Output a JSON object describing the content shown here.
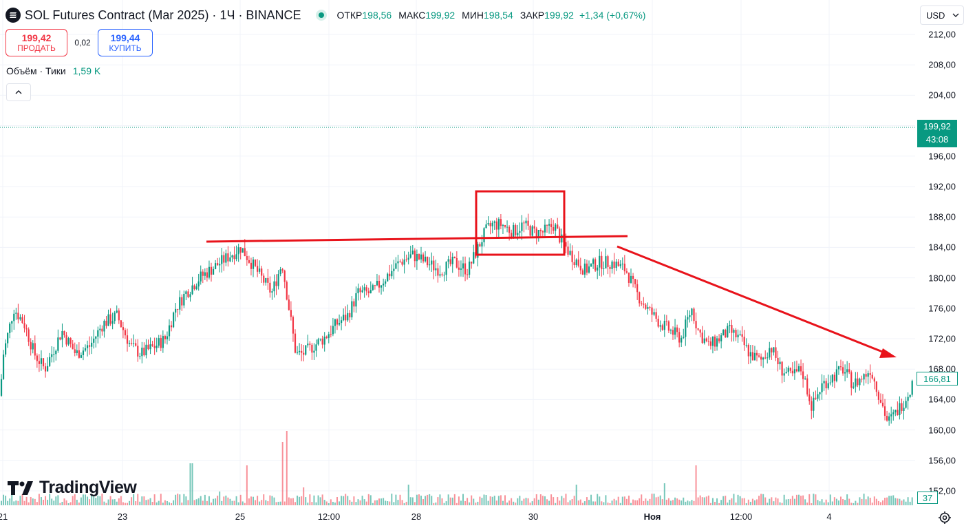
{
  "header": {
    "title": "SOL Futures Contract (Mar 2025) · 1Ч · BINANCE",
    "ohlc": [
      {
        "label": "ОТКР",
        "value": "198,56"
      },
      {
        "label": "МАКС",
        "value": "199,92"
      },
      {
        "label": "МИН",
        "value": "198,54"
      },
      {
        "label": "ЗАКР",
        "value": "199,92"
      }
    ],
    "change": "+1,34 (+0,67%)",
    "currency": "USD"
  },
  "trade": {
    "sell_price": "199,42",
    "sell_label": "ПРОДАТЬ",
    "spread": "0,02",
    "buy_price": "199,44",
    "buy_label": "КУПИТЬ"
  },
  "volume_indicator": {
    "label": "Объём · Тики",
    "value": "1,59 K"
  },
  "logo": {
    "text": "TradingView"
  },
  "price_axis": {
    "ticks": [
      "212,00",
      "208,00",
      "204,00",
      "196,00",
      "192,00",
      "188,00",
      "184,00",
      "180,00",
      "176,00",
      "172,00",
      "168,00",
      "164,00",
      "160,00",
      "156,00",
      "152,00"
    ],
    "current_price": "199,92",
    "countdown": "43:08",
    "last_price": "166,81",
    "volume_value": "37"
  },
  "time_axis": {
    "ticks": [
      "21",
      "23",
      "25",
      "12:00",
      "28",
      "30",
      "Ноя",
      "12:00",
      "4"
    ]
  },
  "colors": {
    "up": "#089981",
    "down": "#f23645",
    "annotation": "#e8131b",
    "grid": "#f0f3fa"
  },
  "icons": {
    "symbol": "solana-icon",
    "collapse": "chevron-up-icon",
    "currency": "chevron-down-icon",
    "settings": "gear-icon"
  },
  "chart_data": {
    "type": "candlestick",
    "timeframe": "1Ч",
    "ylim": [
      150,
      214
    ],
    "price_path": [
      [
        0,
        164.5
      ],
      [
        5,
        170
      ],
      [
        20,
        176
      ],
      [
        35,
        174
      ],
      [
        50,
        170
      ],
      [
        65,
        168
      ],
      [
        90,
        173
      ],
      [
        110,
        170
      ],
      [
        130,
        171
      ],
      [
        150,
        174
      ],
      [
        170,
        175
      ],
      [
        190,
        171
      ],
      [
        205,
        170
      ],
      [
        225,
        171
      ],
      [
        240,
        172
      ],
      [
        255,
        176
      ],
      [
        270,
        178
      ],
      [
        290,
        180
      ],
      [
        305,
        181
      ],
      [
        320,
        182
      ],
      [
        335,
        183
      ],
      [
        350,
        184
      ],
      [
        365,
        182
      ],
      [
        380,
        180
      ],
      [
        395,
        178
      ],
      [
        410,
        182
      ],
      [
        420,
        176
      ],
      [
        430,
        170
      ],
      [
        440,
        170
      ],
      [
        455,
        171
      ],
      [
        470,
        172
      ],
      [
        490,
        174
      ],
      [
        505,
        175
      ],
      [
        520,
        178
      ],
      [
        540,
        178
      ],
      [
        560,
        180
      ],
      [
        580,
        182
      ],
      [
        600,
        183
      ],
      [
        620,
        182
      ],
      [
        640,
        181
      ],
      [
        660,
        182
      ],
      [
        680,
        181
      ],
      [
        695,
        184
      ],
      [
        705,
        186
      ],
      [
        715,
        187
      ],
      [
        730,
        187
      ],
      [
        745,
        186
      ],
      [
        760,
        187
      ],
      [
        775,
        186
      ],
      [
        790,
        186
      ],
      [
        805,
        187
      ],
      [
        815,
        185
      ],
      [
        830,
        183
      ],
      [
        850,
        181
      ],
      [
        870,
        182
      ],
      [
        890,
        182
      ],
      [
        910,
        181
      ],
      [
        925,
        178
      ],
      [
        940,
        176
      ],
      [
        960,
        174
      ],
      [
        975,
        173
      ],
      [
        990,
        172
      ],
      [
        1005,
        176
      ],
      [
        1015,
        173
      ],
      [
        1030,
        171
      ],
      [
        1045,
        172
      ],
      [
        1060,
        173
      ],
      [
        1075,
        172
      ],
      [
        1090,
        170
      ],
      [
        1105,
        169
      ],
      [
        1120,
        171
      ],
      [
        1135,
        168
      ],
      [
        1150,
        167
      ],
      [
        1165,
        168
      ],
      [
        1180,
        163
      ],
      [
        1195,
        166
      ],
      [
        1210,
        167
      ],
      [
        1225,
        168
      ],
      [
        1240,
        166
      ],
      [
        1255,
        167
      ],
      [
        1265,
        168
      ],
      [
        1280,
        164
      ],
      [
        1290,
        161
      ],
      [
        1300,
        162
      ],
      [
        1315,
        164
      ],
      [
        1330,
        166.81
      ]
    ],
    "volume_spikes": [
      [
        278,
        61
      ],
      [
        318,
        20
      ],
      [
        360,
        58
      ],
      [
        410,
        92
      ],
      [
        417,
        108
      ],
      [
        440,
        26
      ],
      [
        593,
        30
      ],
      [
        838,
        30
      ],
      [
        1012,
        58
      ],
      [
        965,
        32
      ]
    ]
  }
}
